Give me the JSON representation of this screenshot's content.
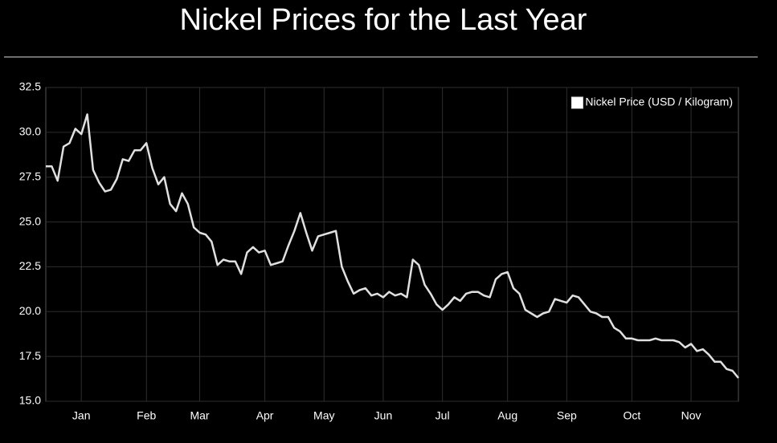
{
  "chart_data": {
    "type": "line",
    "title": "Nickel Prices for the Last Year",
    "categories": [
      null,
      null,
      null,
      null,
      null,
      null,
      "Jan",
      null,
      null,
      null,
      null,
      null,
      null,
      null,
      null,
      null,
      null,
      "Feb",
      null,
      null,
      null,
      null,
      null,
      null,
      null,
      null,
      "Mar",
      null,
      null,
      null,
      null,
      null,
      null,
      null,
      null,
      null,
      null,
      "Apr",
      null,
      null,
      null,
      null,
      null,
      null,
      null,
      null,
      null,
      "May",
      null,
      null,
      null,
      null,
      null,
      null,
      null,
      null,
      null,
      "Jun",
      null,
      null,
      null,
      null,
      null,
      null,
      null,
      null,
      null,
      "Jul",
      null,
      null,
      null,
      null,
      null,
      null,
      null,
      null,
      null,
      null,
      "Aug",
      null,
      null,
      null,
      null,
      null,
      null,
      null,
      null,
      null,
      "Sep",
      null,
      null,
      null,
      null,
      null,
      null,
      null,
      null,
      null,
      null,
      "Oct",
      null,
      null,
      null,
      null,
      null,
      null,
      null,
      null,
      null,
      "Nov",
      null,
      null,
      null,
      null,
      null,
      null,
      null,
      null
    ],
    "series": [
      {
        "name": "Nickel Price (USD / Kilogram)",
        "color": "#e0e0e0",
        "values": [
          28.1,
          28.1,
          27.3,
          29.2,
          29.4,
          30.2,
          29.9,
          31.0,
          27.9,
          27.2,
          26.7,
          26.8,
          27.4,
          28.5,
          28.4,
          29.0,
          29.0,
          29.4,
          28.0,
          27.1,
          27.5,
          26.0,
          25.6,
          26.6,
          26.0,
          24.7,
          24.4,
          24.3,
          23.9,
          22.6,
          22.9,
          22.8,
          22.8,
          22.1,
          23.3,
          23.6,
          23.3,
          23.4,
          22.6,
          22.7,
          22.8,
          23.7,
          24.5,
          25.5,
          24.4,
          23.4,
          24.2,
          24.3,
          24.4,
          24.5,
          22.5,
          21.7,
          21.0,
          21.2,
          21.3,
          20.9,
          21.0,
          20.8,
          21.1,
          20.9,
          21.0,
          20.8,
          22.9,
          22.6,
          21.5,
          21.0,
          20.4,
          20.1,
          20.4,
          20.8,
          20.6,
          21.0,
          21.1,
          21.1,
          20.9,
          20.8,
          21.8,
          22.1,
          22.2,
          21.3,
          21.0,
          20.1,
          19.9,
          19.7,
          19.9,
          20.0,
          20.7,
          20.6,
          20.5,
          20.9,
          20.8,
          20.4,
          20.0,
          19.9,
          19.7,
          19.7,
          19.1,
          18.9,
          18.5,
          18.5,
          18.4,
          18.4,
          18.4,
          18.5,
          18.4,
          18.4,
          18.4,
          18.3,
          18.0,
          18.2,
          17.8,
          17.9,
          17.6,
          17.2,
          17.2,
          16.8,
          16.7,
          16.3
        ]
      }
    ],
    "ylim": [
      15,
      32.5
    ],
    "yticks": [
      {
        "value": 15,
        "label": "15.0"
      },
      17.5,
      {
        "value": 20,
        "label": "20.0"
      },
      22.5,
      {
        "value": 25,
        "label": "25.0"
      },
      27.5,
      {
        "value": 30,
        "label": "30.0"
      },
      32.5
    ],
    "grid": true,
    "legend": "top-right"
  }
}
